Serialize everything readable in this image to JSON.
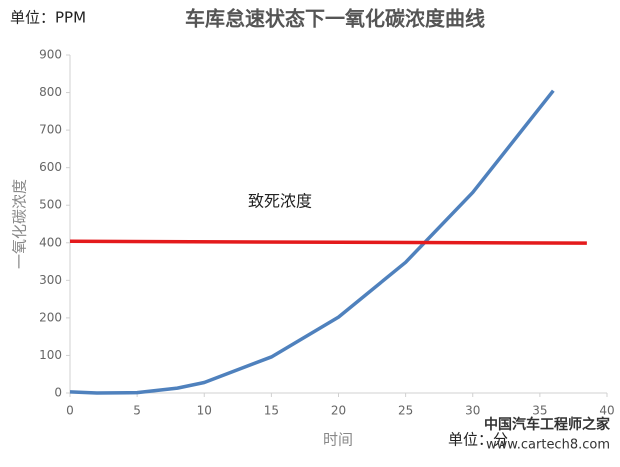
{
  "chart_data": {
    "type": "line",
    "title": "车库怠速状态下一氧化碳浓度曲线",
    "unit_y": "单位：PPM",
    "unit_x": "单位：分",
    "x_label": "时间",
    "y_label": "一氧化碳浓度",
    "annotation": "致死浓度",
    "watermark": [
      "中国汽车工程师之家",
      "www.cartech8.com"
    ],
    "xlim": [
      0,
      40
    ],
    "xticks": [
      0,
      5,
      10,
      15,
      20,
      25,
      30,
      35,
      40
    ],
    "ylim": [
      0,
      900
    ],
    "yticks": [
      0,
      100,
      200,
      300,
      400,
      500,
      600,
      700,
      800,
      900
    ],
    "grid": false,
    "series": [
      {
        "color": "#4f81bd",
        "x": [
          0,
          2,
          5,
          8,
          10,
          15,
          20,
          25,
          30,
          36
        ],
        "values": [
          3,
          0,
          1,
          13,
          28,
          96,
          202,
          348,
          534,
          805
        ]
      },
      {
        "color": "#e41a1c",
        "x": [
          0,
          38.5
        ],
        "values": [
          404,
          399
        ]
      }
    ]
  }
}
